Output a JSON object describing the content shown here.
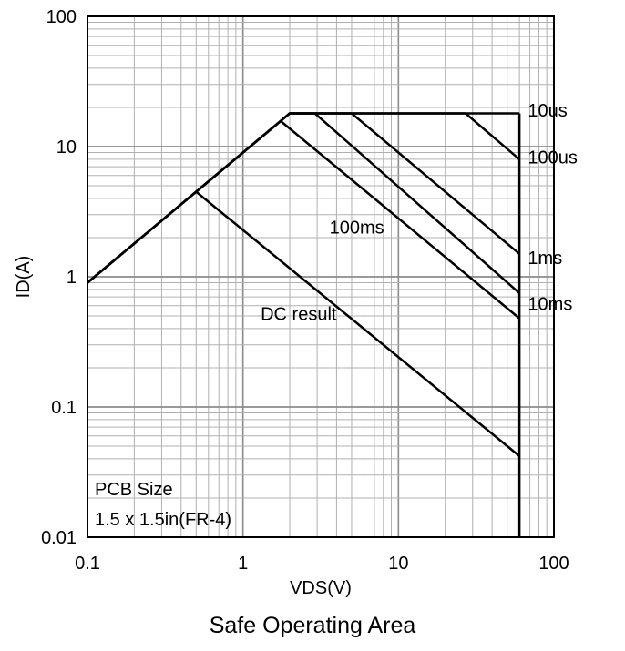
{
  "caption": "Safe Operating Area",
  "chart_data": {
    "type": "line",
    "title": "Safe Operating Area",
    "xlabel": "VDS(V)",
    "ylabel": "ID(A)",
    "xscale": "log",
    "yscale": "log",
    "xlim": [
      0.1,
      100
    ],
    "ylim": [
      0.01,
      100
    ],
    "grid": true,
    "x_ticks": [
      "0.1",
      "1",
      "10",
      "100"
    ],
    "y_ticks": [
      "0.01",
      "0.1",
      "1",
      "10",
      "100"
    ],
    "series": [
      {
        "name": "10us",
        "x": [
          0.1,
          2.0,
          60
        ],
        "y": [
          0.9,
          18,
          18
        ]
      },
      {
        "name": "100us",
        "x": [
          0.1,
          2.0,
          27,
          60
        ],
        "y": [
          0.9,
          18,
          18,
          8
        ]
      },
      {
        "name": "1ms",
        "x": [
          0.1,
          2.0,
          5.0,
          60
        ],
        "y": [
          0.9,
          18,
          18,
          1.5
        ]
      },
      {
        "name": "10ms",
        "x": [
          0.1,
          2.0,
          2.9,
          60
        ],
        "y": [
          0.9,
          18,
          18,
          0.75
        ]
      },
      {
        "name": "100ms",
        "x": [
          0.1,
          1.75,
          60
        ],
        "y": [
          0.9,
          15.7,
          0.48
        ]
      },
      {
        "name": "DC result",
        "x": [
          0.1,
          0.5,
          60
        ],
        "y": [
          0.9,
          4.5,
          0.042
        ]
      }
    ],
    "limit_x": 60,
    "annotations": [
      {
        "text": "10us",
        "x": 68,
        "y": 19
      },
      {
        "text": "100us",
        "x": 68,
        "y": 8.3
      },
      {
        "text": "1ms",
        "x": 68,
        "y": 1.4
      },
      {
        "text": "10ms",
        "x": 68,
        "y": 0.62
      },
      {
        "text": "100ms",
        "x": 3.6,
        "y": 2.4
      },
      {
        "text": "DC result",
        "x": 1.3,
        "y": 0.52
      }
    ],
    "inset_text": [
      "PCB Size",
      "1.5 x 1.5in(FR-4)"
    ]
  }
}
